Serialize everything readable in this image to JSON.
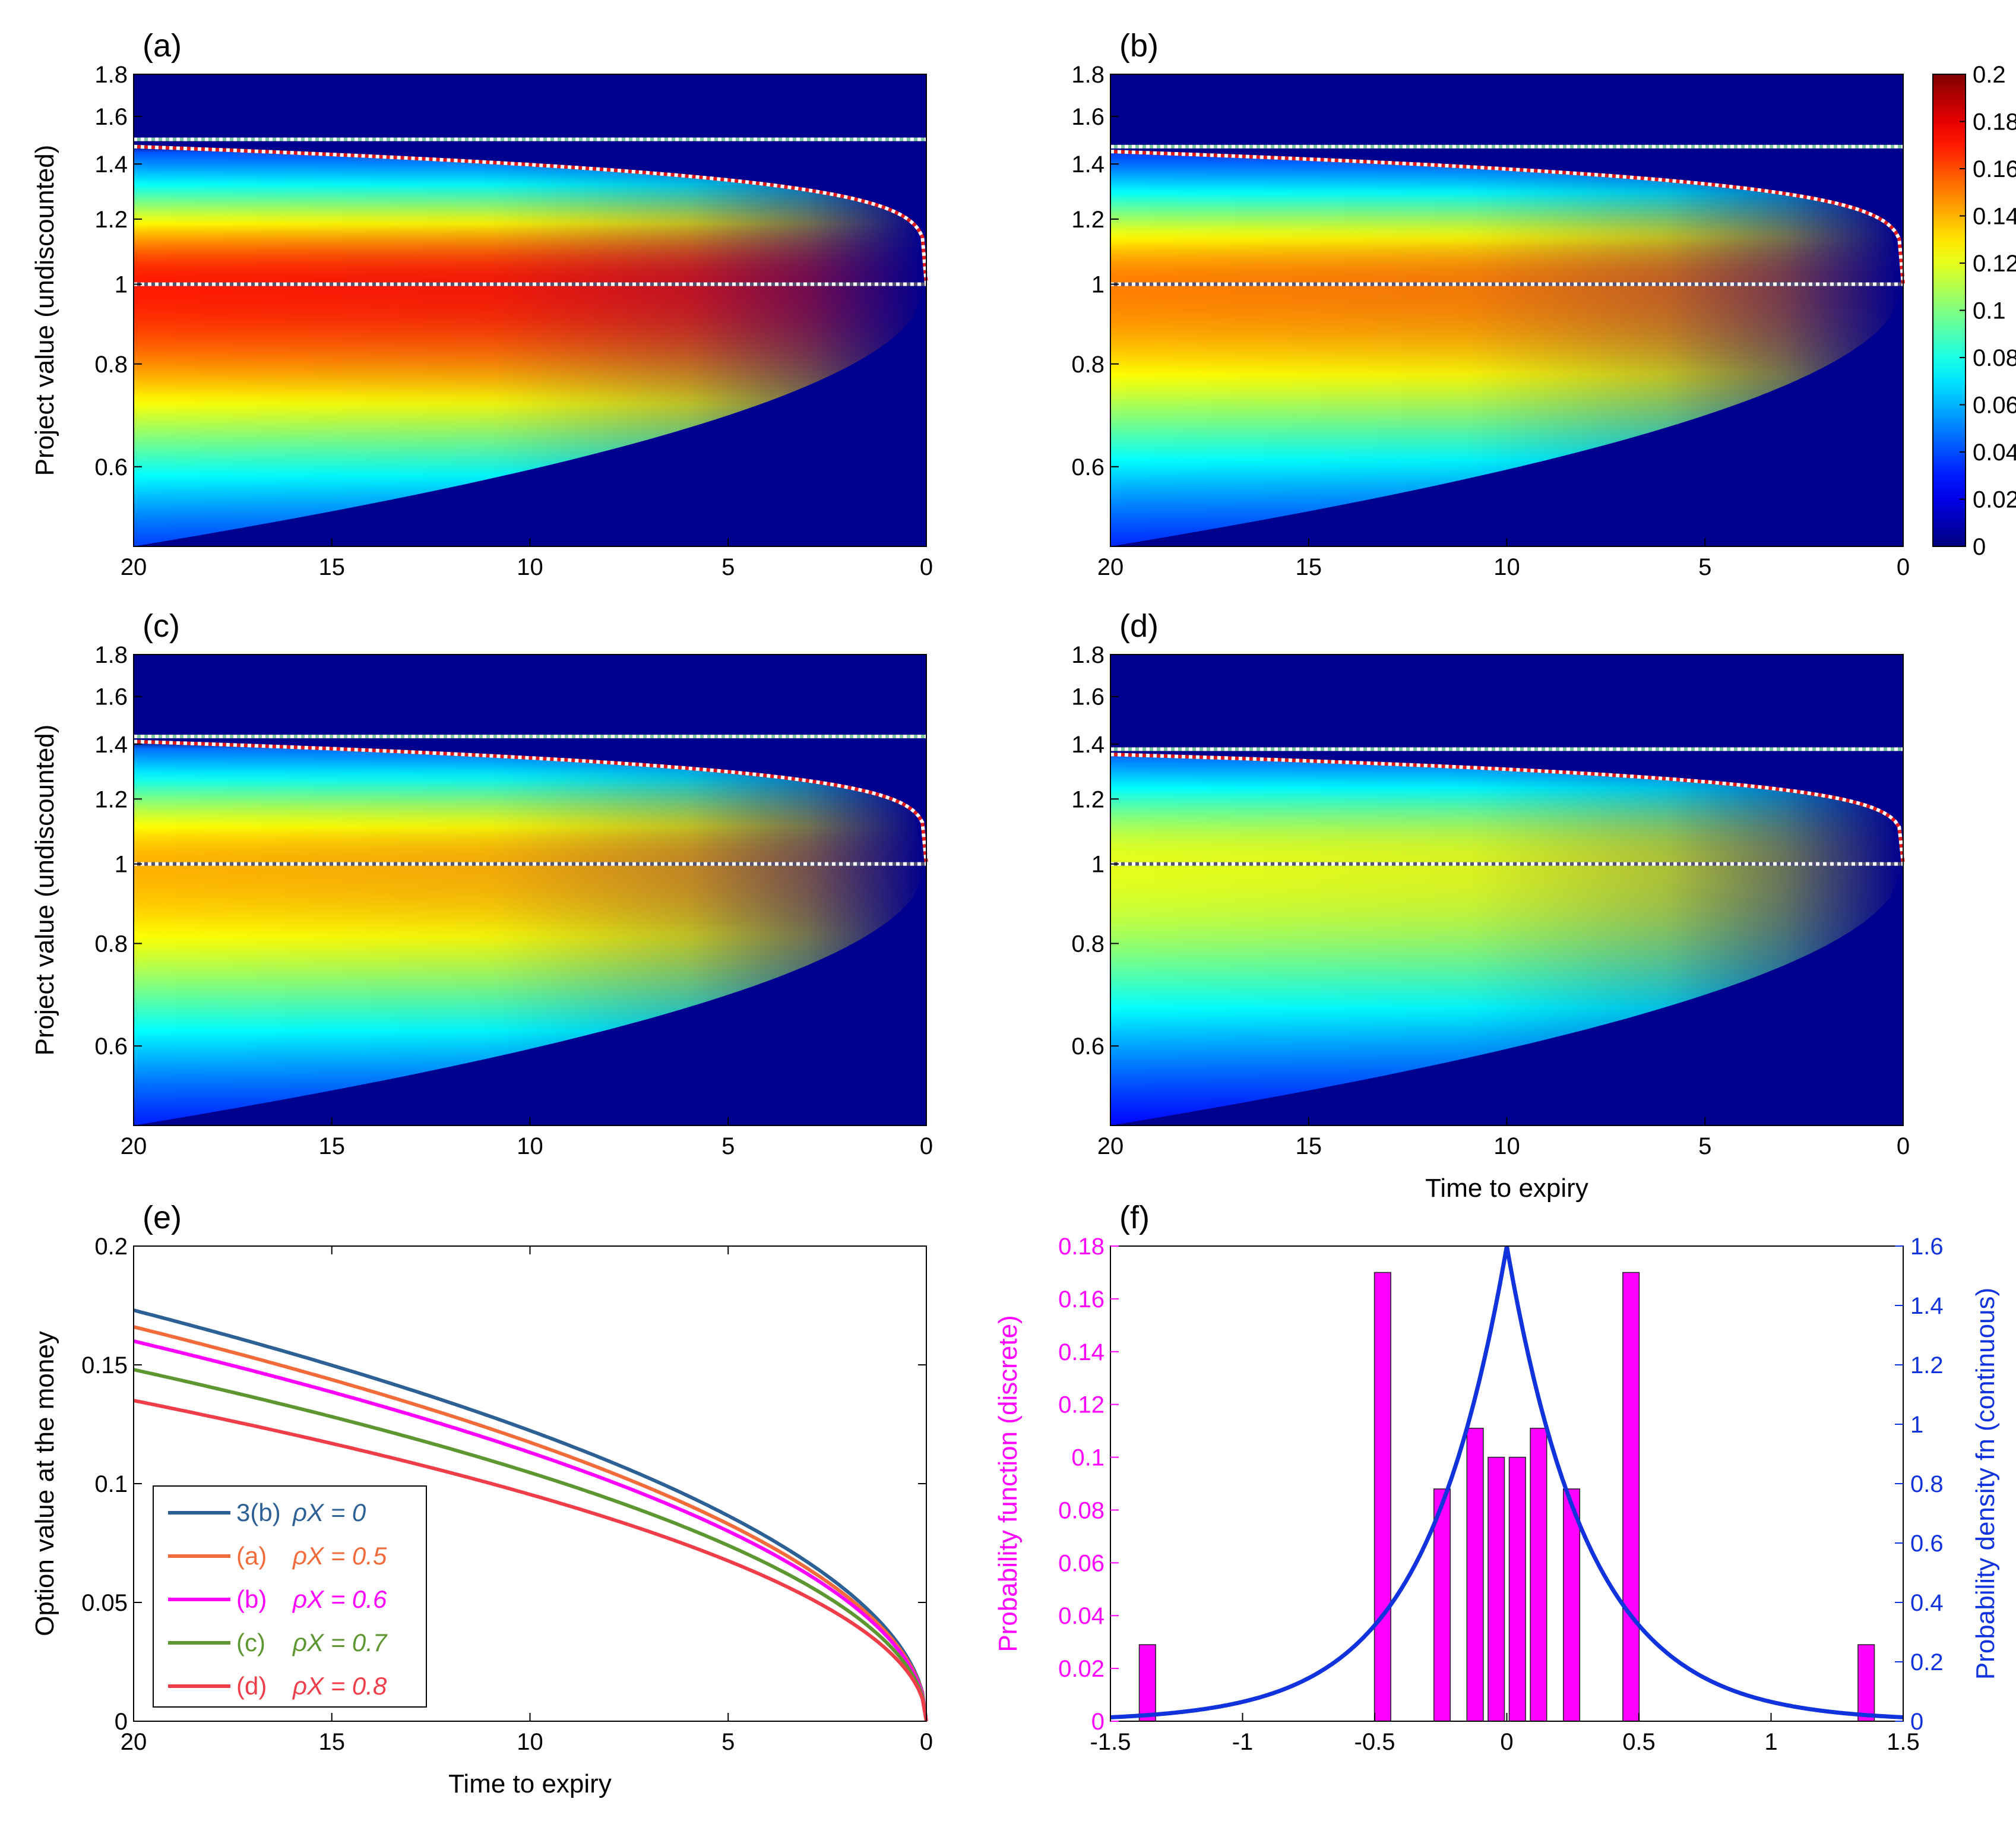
{
  "chart_data": [
    {
      "panel": "(a)",
      "type": "heatmap",
      "title": "",
      "xlabel": "",
      "ylabel": "Project value (undiscounted)",
      "xlim": [
        20,
        0
      ],
      "ylim_log": [
        0.48,
        1.8
      ],
      "xticks": [
        "20",
        "15",
        "10",
        "5",
        "0"
      ],
      "yticks": [
        "0.6",
        "0.8",
        "1",
        "1.2",
        "1.4",
        "1.6",
        "1.8"
      ],
      "density_peak": 0.17,
      "flat_boundary": 1.5,
      "free_boundary_at_20": 1.47,
      "strike": 1.0
    },
    {
      "panel": "(b)",
      "type": "heatmap",
      "xlabel": "",
      "ylabel": "",
      "xlim": [
        20,
        0
      ],
      "ylim_log": [
        0.48,
        1.8
      ],
      "xticks": [
        "20",
        "15",
        "10",
        "5",
        "0"
      ],
      "yticks": [
        "0.6",
        "0.8",
        "1",
        "1.2",
        "1.4",
        "1.6",
        "1.8"
      ],
      "density_peak": 0.15,
      "flat_boundary": 1.47,
      "free_boundary_at_20": 1.45,
      "strike": 1.0,
      "colorbar": {
        "range": [
          0,
          0.2
        ],
        "ticks": [
          "0",
          "0.02",
          "0.04",
          "0.06",
          "0.08",
          "0.1",
          "0.12",
          "0.14",
          "0.16",
          "0.18",
          "0.2"
        ]
      }
    },
    {
      "panel": "(c)",
      "type": "heatmap",
      "xlabel": "",
      "ylabel": "Project value (undiscounted)",
      "xlim": [
        20,
        0
      ],
      "ylim_log": [
        0.48,
        1.8
      ],
      "xticks": [
        "20",
        "15",
        "10",
        "5",
        "0"
      ],
      "yticks": [
        "0.6",
        "0.8",
        "1",
        "1.2",
        "1.4",
        "1.6",
        "1.8"
      ],
      "density_peak": 0.14,
      "flat_boundary": 1.43,
      "free_boundary_at_20": 1.41,
      "strike": 1.0
    },
    {
      "panel": "(d)",
      "type": "heatmap",
      "xlabel": "Time to expiry",
      "ylabel": "",
      "xlim": [
        20,
        0
      ],
      "ylim_log": [
        0.48,
        1.8
      ],
      "xticks": [
        "20",
        "15",
        "10",
        "5",
        "0"
      ],
      "yticks": [
        "0.6",
        "0.8",
        "1",
        "1.2",
        "1.4",
        "1.6",
        "1.8"
      ],
      "density_peak": 0.12,
      "flat_boundary": 1.38,
      "free_boundary_at_20": 1.36,
      "strike": 1.0
    },
    {
      "panel": "(e)",
      "type": "line",
      "xlabel": "Time to expiry",
      "ylabel": "Option value at the money",
      "xlim": [
        20,
        0
      ],
      "ylim": [
        0,
        0.2
      ],
      "xticks": [
        "20",
        "15",
        "10",
        "5",
        "0"
      ],
      "yticks": [
        "0",
        "0.05",
        "0.1",
        "0.15",
        "0.2"
      ],
      "series": [
        {
          "name": "3(b)",
          "rho": "ρX = 0",
          "color": "#2d6196",
          "value_at_20": 0.173
        },
        {
          "name": "(a)",
          "rho": "ρX = 0.5",
          "color": "#f26b3a",
          "value_at_20": 0.166
        },
        {
          "name": "(b)",
          "rho": "ρX = 0.6",
          "color": "#ff00ff",
          "value_at_20": 0.16
        },
        {
          "name": "(c)",
          "rho": "ρX = 0.7",
          "color": "#5e9732",
          "value_at_20": 0.148
        },
        {
          "name": "(d)",
          "rho": "ρX = 0.8",
          "color": "#ef3e4a",
          "value_at_20": 0.135
        }
      ]
    },
    {
      "panel": "(f)",
      "type": "bar",
      "xlabel": "",
      "ylabel_left": "Probability function (discrete)",
      "ylabel_right": "Probability density fn (continuous)",
      "xlim": [
        -1.5,
        1.5
      ],
      "ylim_left": [
        0,
        0.18
      ],
      "ylim_right": [
        0,
        1.6
      ],
      "xticks": [
        "-1.5",
        "-1",
        "-0.5",
        "0",
        "0.5",
        "1",
        "1.5"
      ],
      "yticks_left": [
        "0",
        "0.02",
        "0.04",
        "0.06",
        "0.08",
        "0.1",
        "0.12",
        "0.14",
        "0.16",
        "0.18"
      ],
      "yticks_right": [
        "0",
        "0.2",
        "0.4",
        "0.6",
        "0.8",
        "1",
        "1.2",
        "1.4",
        "1.6"
      ],
      "bars": {
        "x": [
          -1.36,
          -0.47,
          -0.245,
          -0.12,
          -0.04,
          0.04,
          0.12,
          0.245,
          0.47,
          1.36
        ],
        "values": [
          0.029,
          0.17,
          0.088,
          0.111,
          0.1,
          0.1,
          0.111,
          0.088,
          0.17,
          0.029
        ],
        "color": "#ff00ff"
      },
      "density_curve": {
        "type": "laplace",
        "peak": 1.6,
        "color": "#1133dd"
      }
    }
  ]
}
